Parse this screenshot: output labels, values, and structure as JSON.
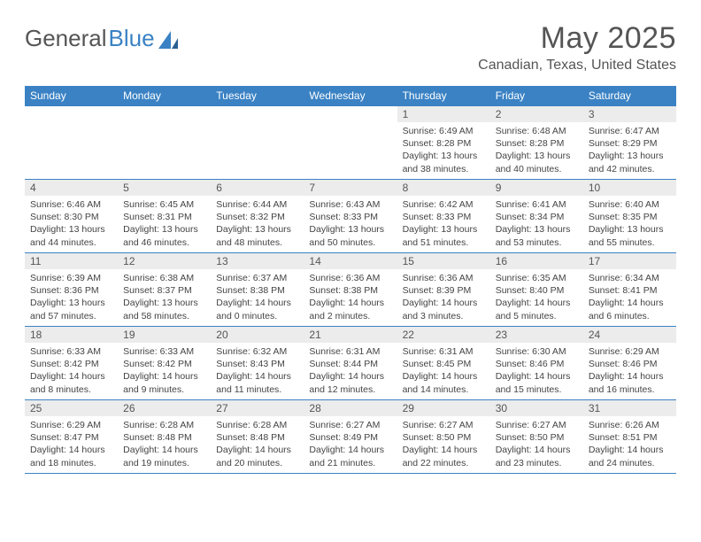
{
  "brand": {
    "part1": "General",
    "part2": "Blue"
  },
  "title": "May 2025",
  "location": "Canadian, Texas, United States",
  "colors": {
    "header_bg": "#3a82c4",
    "date_bg": "#ececec",
    "border": "#3a82c4",
    "text": "#444444"
  },
  "day_labels": [
    "Sunday",
    "Monday",
    "Tuesday",
    "Wednesday",
    "Thursday",
    "Friday",
    "Saturday"
  ],
  "weeks": [
    [
      null,
      null,
      null,
      null,
      {
        "d": "1",
        "sunrise": "6:49 AM",
        "sunset": "8:28 PM",
        "day_h": 13,
        "day_m": 38
      },
      {
        "d": "2",
        "sunrise": "6:48 AM",
        "sunset": "8:28 PM",
        "day_h": 13,
        "day_m": 40
      },
      {
        "d": "3",
        "sunrise": "6:47 AM",
        "sunset": "8:29 PM",
        "day_h": 13,
        "day_m": 42
      }
    ],
    [
      {
        "d": "4",
        "sunrise": "6:46 AM",
        "sunset": "8:30 PM",
        "day_h": 13,
        "day_m": 44
      },
      {
        "d": "5",
        "sunrise": "6:45 AM",
        "sunset": "8:31 PM",
        "day_h": 13,
        "day_m": 46
      },
      {
        "d": "6",
        "sunrise": "6:44 AM",
        "sunset": "8:32 PM",
        "day_h": 13,
        "day_m": 48
      },
      {
        "d": "7",
        "sunrise": "6:43 AM",
        "sunset": "8:33 PM",
        "day_h": 13,
        "day_m": 50
      },
      {
        "d": "8",
        "sunrise": "6:42 AM",
        "sunset": "8:33 PM",
        "day_h": 13,
        "day_m": 51
      },
      {
        "d": "9",
        "sunrise": "6:41 AM",
        "sunset": "8:34 PM",
        "day_h": 13,
        "day_m": 53
      },
      {
        "d": "10",
        "sunrise": "6:40 AM",
        "sunset": "8:35 PM",
        "day_h": 13,
        "day_m": 55
      }
    ],
    [
      {
        "d": "11",
        "sunrise": "6:39 AM",
        "sunset": "8:36 PM",
        "day_h": 13,
        "day_m": 57
      },
      {
        "d": "12",
        "sunrise": "6:38 AM",
        "sunset": "8:37 PM",
        "day_h": 13,
        "day_m": 58
      },
      {
        "d": "13",
        "sunrise": "6:37 AM",
        "sunset": "8:38 PM",
        "day_h": 14,
        "day_m": 0
      },
      {
        "d": "14",
        "sunrise": "6:36 AM",
        "sunset": "8:38 PM",
        "day_h": 14,
        "day_m": 2
      },
      {
        "d": "15",
        "sunrise": "6:36 AM",
        "sunset": "8:39 PM",
        "day_h": 14,
        "day_m": 3
      },
      {
        "d": "16",
        "sunrise": "6:35 AM",
        "sunset": "8:40 PM",
        "day_h": 14,
        "day_m": 5
      },
      {
        "d": "17",
        "sunrise": "6:34 AM",
        "sunset": "8:41 PM",
        "day_h": 14,
        "day_m": 6
      }
    ],
    [
      {
        "d": "18",
        "sunrise": "6:33 AM",
        "sunset": "8:42 PM",
        "day_h": 14,
        "day_m": 8
      },
      {
        "d": "19",
        "sunrise": "6:33 AM",
        "sunset": "8:42 PM",
        "day_h": 14,
        "day_m": 9
      },
      {
        "d": "20",
        "sunrise": "6:32 AM",
        "sunset": "8:43 PM",
        "day_h": 14,
        "day_m": 11
      },
      {
        "d": "21",
        "sunrise": "6:31 AM",
        "sunset": "8:44 PM",
        "day_h": 14,
        "day_m": 12
      },
      {
        "d": "22",
        "sunrise": "6:31 AM",
        "sunset": "8:45 PM",
        "day_h": 14,
        "day_m": 14
      },
      {
        "d": "23",
        "sunrise": "6:30 AM",
        "sunset": "8:46 PM",
        "day_h": 14,
        "day_m": 15
      },
      {
        "d": "24",
        "sunrise": "6:29 AM",
        "sunset": "8:46 PM",
        "day_h": 14,
        "day_m": 16
      }
    ],
    [
      {
        "d": "25",
        "sunrise": "6:29 AM",
        "sunset": "8:47 PM",
        "day_h": 14,
        "day_m": 18
      },
      {
        "d": "26",
        "sunrise": "6:28 AM",
        "sunset": "8:48 PM",
        "day_h": 14,
        "day_m": 19
      },
      {
        "d": "27",
        "sunrise": "6:28 AM",
        "sunset": "8:48 PM",
        "day_h": 14,
        "day_m": 20
      },
      {
        "d": "28",
        "sunrise": "6:27 AM",
        "sunset": "8:49 PM",
        "day_h": 14,
        "day_m": 21
      },
      {
        "d": "29",
        "sunrise": "6:27 AM",
        "sunset": "8:50 PM",
        "day_h": 14,
        "day_m": 22
      },
      {
        "d": "30",
        "sunrise": "6:27 AM",
        "sunset": "8:50 PM",
        "day_h": 14,
        "day_m": 23
      },
      {
        "d": "31",
        "sunrise": "6:26 AM",
        "sunset": "8:51 PM",
        "day_h": 14,
        "day_m": 24
      }
    ]
  ]
}
